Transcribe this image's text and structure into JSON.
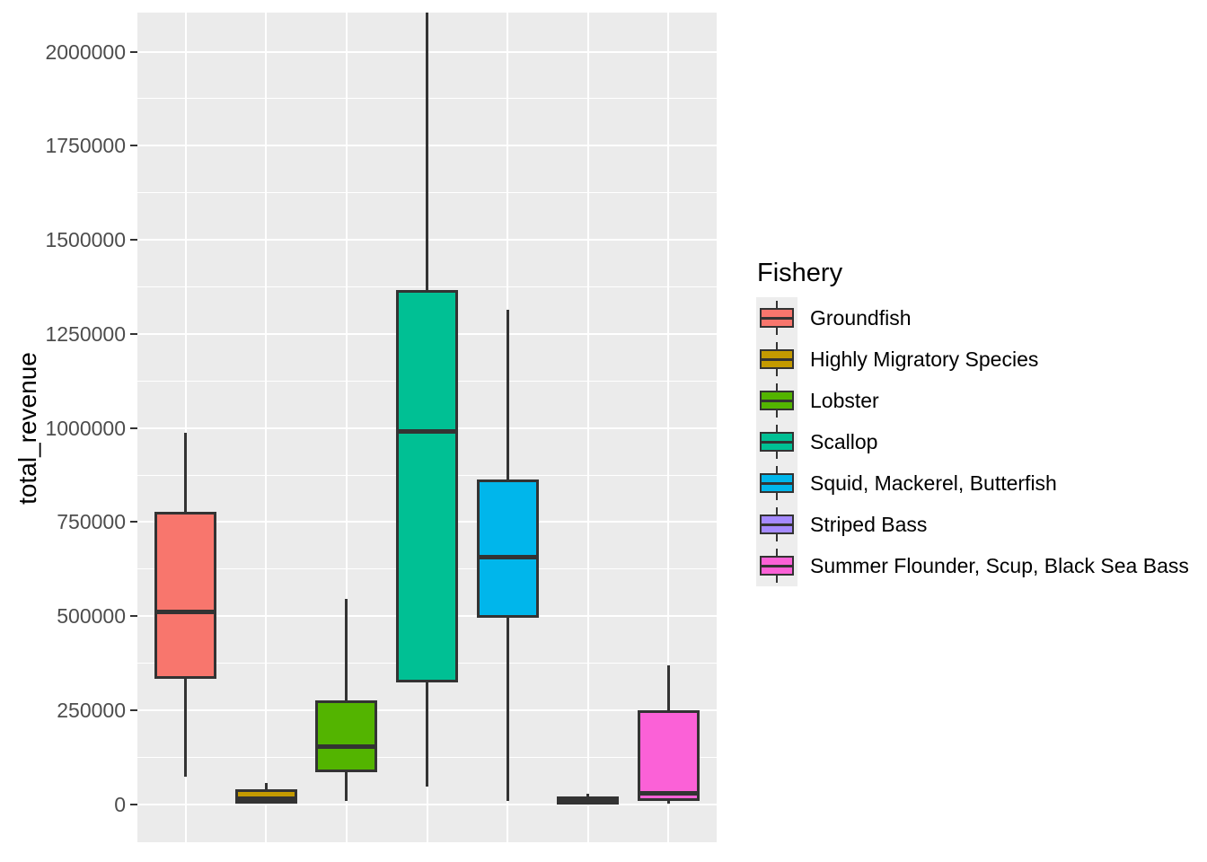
{
  "figure": {
    "background": "#FFFFFF",
    "panel_background": "#EBEBEB",
    "grid_color": "#FFFFFF",
    "box_outline_color": "#333333",
    "axis_text_color": "#4D4D4D",
    "axis_title_color": "#000000"
  },
  "y_axis": {
    "title": "total_revenue",
    "tick_labels": [
      "0",
      "250000",
      "500000",
      "750000",
      "1000000",
      "1250000",
      "1500000",
      "1750000",
      "2000000"
    ]
  },
  "x_axis": {
    "title": "",
    "tick_labels": []
  },
  "legend": {
    "title": "Fishery",
    "position": "right",
    "entries": [
      {
        "label": "Groundfish",
        "color": "#F8766D"
      },
      {
        "label": "Highly Migratory Species",
        "color": "#C49A00"
      },
      {
        "label": "Lobster",
        "color": "#53B400"
      },
      {
        "label": "Scallop",
        "color": "#00C094"
      },
      {
        "label": "Squid, Mackerel, Butterfish",
        "color": "#00B6EB"
      },
      {
        "label": "Striped Bass",
        "color": "#A58AFF"
      },
      {
        "label": "Summer Flounder, Scup, Black Sea Bass",
        "color": "#FB61D7"
      }
    ]
  },
  "chart_data": {
    "type": "boxplot",
    "title": "",
    "xlabel": "",
    "ylabel": "total_revenue",
    "ylim": [
      -101000,
      2104000
    ],
    "y_ticks": [
      0,
      250000,
      500000,
      750000,
      1000000,
      1250000,
      1500000,
      1750000,
      2000000
    ],
    "y_minor_ticks": [
      125000,
      375000,
      625000,
      875000,
      1125000,
      1375000,
      1625000,
      1875000
    ],
    "grid": true,
    "legend_title": "Fishery",
    "legend_position": "right",
    "series": [
      {
        "name": "Groundfish",
        "color": "#F8766D",
        "min": 73000,
        "q1": 337000,
        "median": 511000,
        "q3": 774000,
        "max": 988000
      },
      {
        "name": "Highly Migratory Species",
        "color": "#C49A00",
        "min": 2000,
        "q1": 6000,
        "median": 14000,
        "q3": 37000,
        "max": 56000
      },
      {
        "name": "Lobster",
        "color": "#53B400",
        "min": 9000,
        "q1": 88000,
        "median": 152000,
        "q3": 272000,
        "max": 545000
      },
      {
        "name": "Scallop",
        "color": "#00C094",
        "min": 47000,
        "q1": 328000,
        "median": 991000,
        "q3": 1363000,
        "max": 2104000
      },
      {
        "name": "Squid, Mackerel, Butterfish",
        "color": "#00B6EB",
        "min": 9000,
        "q1": 500000,
        "median": 657000,
        "q3": 860000,
        "max": 1314000
      },
      {
        "name": "Striped Bass",
        "color": "#A58AFF",
        "min": 0,
        "q1": 2000,
        "median": 8000,
        "q3": 18000,
        "max": 27000
      },
      {
        "name": "Summer Flounder, Scup, Black Sea Bass",
        "color": "#FB61D7",
        "min": 1000,
        "q1": 13000,
        "median": 30000,
        "q3": 247000,
        "max": 368000
      }
    ]
  }
}
